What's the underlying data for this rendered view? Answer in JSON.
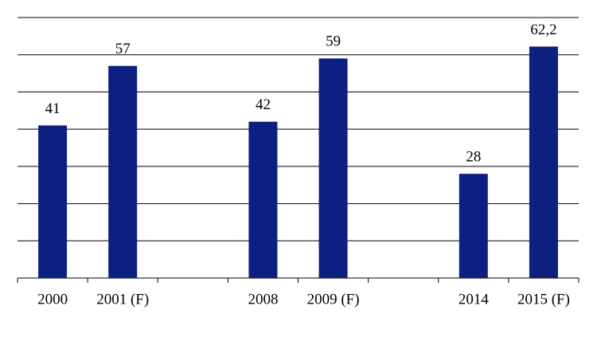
{
  "chart_data": {
    "type": "bar",
    "categories": [
      "2000",
      "2001 (F)",
      null,
      "2008",
      "2009 (F)",
      null,
      "2014",
      "2015 (F)"
    ],
    "values": [
      41,
      57,
      null,
      42,
      59,
      null,
      28,
      62.2
    ],
    "value_labels": [
      "41",
      "57",
      null,
      "42",
      "59",
      null,
      "28",
      "62,2"
    ],
    "color": "#0d1f80",
    "ylim": [
      0,
      70
    ],
    "yticks": [
      0,
      10,
      20,
      30,
      40,
      50,
      60,
      70
    ],
    "grid": true
  }
}
